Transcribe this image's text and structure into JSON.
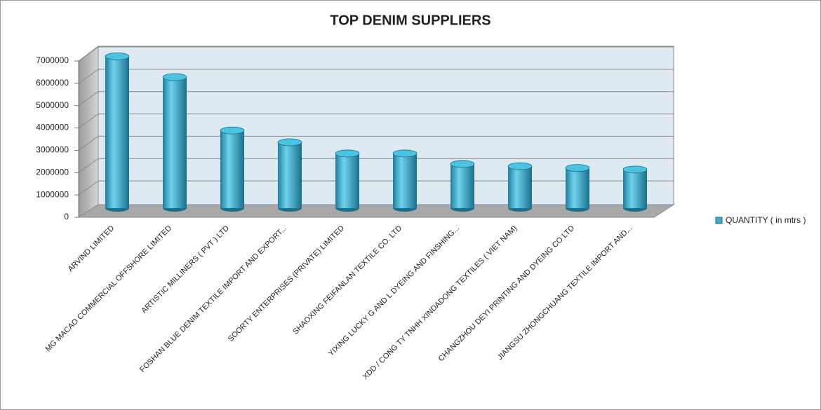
{
  "chart_data": {
    "type": "bar3d",
    "title": "TOP DENIM SUPPLIERS",
    "categories": [
      "ARVIND LIMITED",
      "MG MACAO COMMERCIAL OFFSHORE LIMITED",
      "ARTISTIC MILLINERS ( PVT ) LTD",
      "FOSHAN BLUE DENIM TEXTILE IMPORT AND EXPORT...",
      "SOORTY ENTERPRISES (PRIVATE) LIMITED",
      "SHAOXING FEIFANLAN TEXTILE CO. LTD",
      "YIXING LUCKY G AND L DYEING AND FINSHING...",
      "XDD / CONG TY TNHH XINDADONG TEXTILES ( VIET NAM)",
      "CHANGZHOU DEYI PRINTING AND DYEING CO LTD",
      "JIANGSU ZHONGCHUANG TEXTILE IMPORT AND..."
    ],
    "series": [
      {
        "name": "QUANTITY ( in mtrs )",
        "color": "#3aaccc",
        "values": [
          6800000,
          5870000,
          3480000,
          2950000,
          2450000,
          2450000,
          1980000,
          1880000,
          1800000,
          1730000
        ]
      }
    ],
    "ylim": [
      0,
      7000000
    ],
    "yticks": [
      0,
      1000000,
      2000000,
      3000000,
      4000000,
      5000000,
      6000000,
      7000000
    ],
    "grid": true,
    "legend": "right"
  }
}
